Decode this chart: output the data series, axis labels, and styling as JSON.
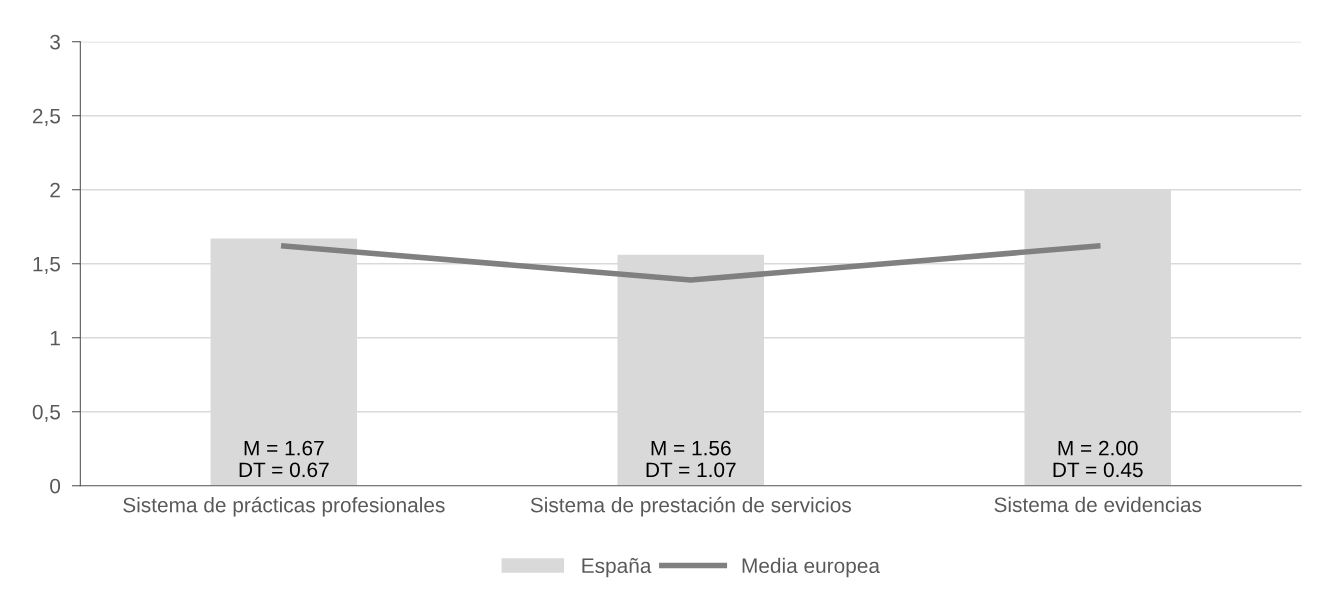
{
  "chart_data": {
    "type": "bar",
    "categories": [
      "Sistema de prácticas profesionales",
      "Sistema de prestación de servicios",
      "Sistema de evidencias"
    ],
    "series": [
      {
        "name": "España",
        "color": "#d9d9d9",
        "values": [
          1.67,
          1.56,
          2.0
        ],
        "value_labels": [
          "M = 1.67\nDT = 0.67",
          "M = 1.56\nDT = 1.07",
          "M = 2.00\nDT = 0.45"
        ]
      },
      {
        "name": "Media europea",
        "type": "line",
        "color": "#808080",
        "values": [
          1.62,
          1.39,
          1.62
        ]
      }
    ],
    "ylim": [
      0,
      3
    ],
    "yticks": [
      0,
      {
        "value": 0.5,
        "label": "0,5"
      },
      1,
      {
        "value": 1.5,
        "label": "1,5"
      },
      2,
      {
        "value": 2.5,
        "label": "2,5"
      },
      3
    ],
    "grid": "y",
    "legend": "bottom",
    "marker": "none",
    "line_style": "solid"
  }
}
